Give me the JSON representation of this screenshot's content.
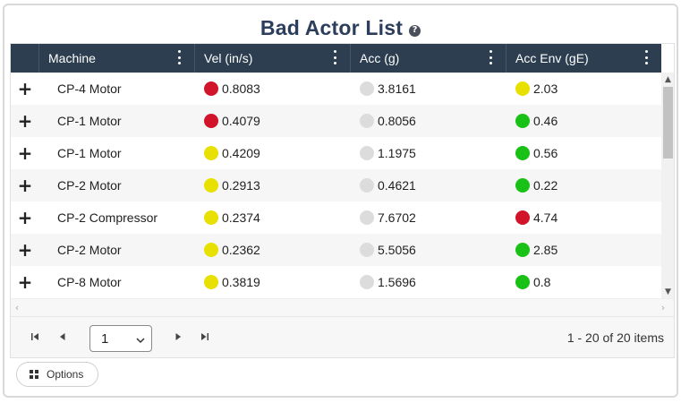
{
  "title": "Bad Actor List",
  "help_icon": "question-circle-icon",
  "colors": {
    "red": "#d2142b",
    "yellow": "#e8e000",
    "green": "#19c116",
    "gray": "#dcdcdc",
    "header_bg": "#2c3e50"
  },
  "columns": [
    "",
    "Machine",
    "Vel (in/s)",
    "Acc (g)",
    "Acc Env (gE)"
  ],
  "rows": [
    {
      "expand": "+",
      "machine": "CP-4 Motor",
      "vel": "0.8083",
      "vel_status": "red",
      "acc": "3.8161",
      "acc_status": "gray",
      "env": "2.03",
      "env_status": "yellow"
    },
    {
      "expand": "+",
      "machine": "CP-1 Motor",
      "vel": "0.4079",
      "vel_status": "red",
      "acc": "0.8056",
      "acc_status": "gray",
      "env": "0.46",
      "env_status": "green"
    },
    {
      "expand": "+",
      "machine": "CP-1 Motor",
      "vel": "0.4209",
      "vel_status": "yellow",
      "acc": "1.1975",
      "acc_status": "gray",
      "env": "0.56",
      "env_status": "green"
    },
    {
      "expand": "+",
      "machine": "CP-2 Motor",
      "vel": "0.2913",
      "vel_status": "yellow",
      "acc": "0.4621",
      "acc_status": "gray",
      "env": "0.22",
      "env_status": "green"
    },
    {
      "expand": "+",
      "machine": "CP-2 Compressor",
      "vel": "0.2374",
      "vel_status": "yellow",
      "acc": "7.6702",
      "acc_status": "gray",
      "env": "4.74",
      "env_status": "red"
    },
    {
      "expand": "+",
      "machine": "CP-2 Motor",
      "vel": "0.2362",
      "vel_status": "yellow",
      "acc": "5.5056",
      "acc_status": "gray",
      "env": "2.85",
      "env_status": "green"
    },
    {
      "expand": "+",
      "machine": "CP-8 Motor",
      "vel": "0.3819",
      "vel_status": "yellow",
      "acc": "1.5696",
      "acc_status": "gray",
      "env": "0.8",
      "env_status": "green"
    }
  ],
  "pager": {
    "current_page": "1",
    "info": "1 - 20 of 20 items"
  },
  "options_label": "Options"
}
